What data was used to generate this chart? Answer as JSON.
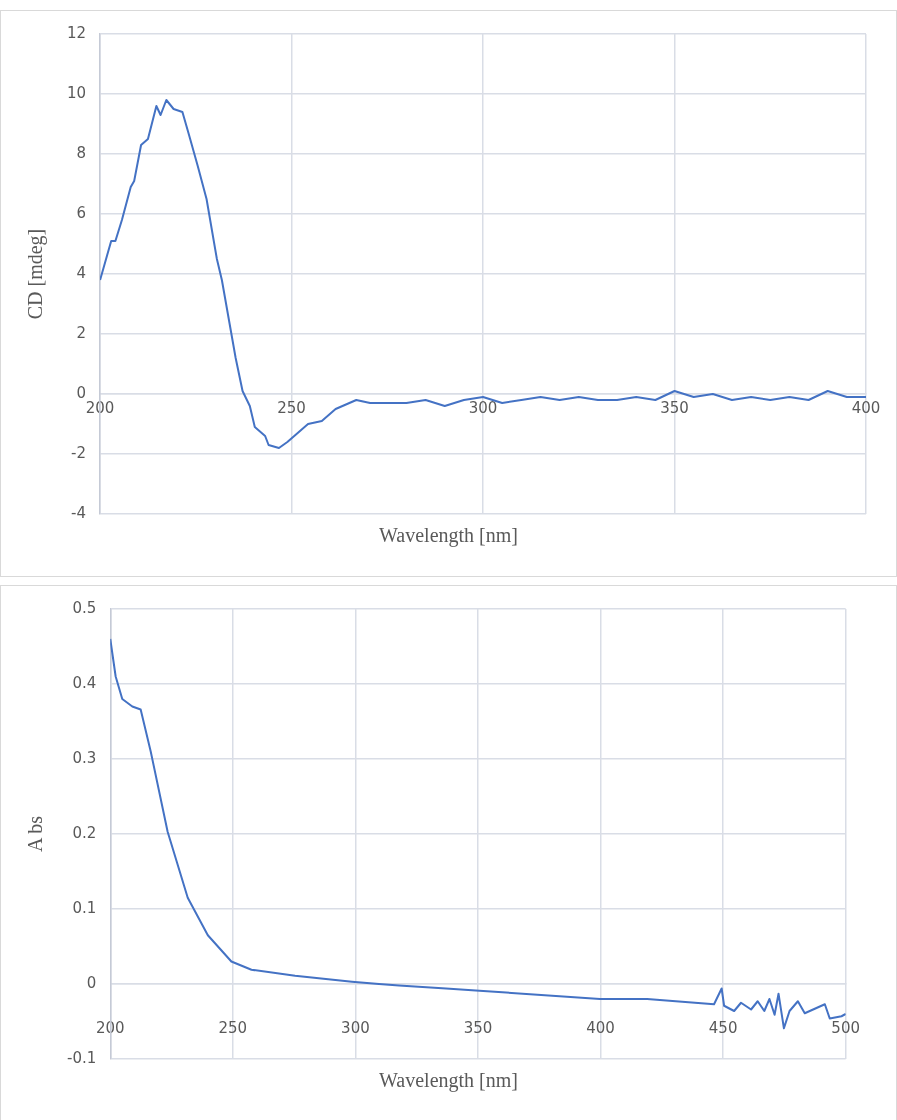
{
  "chart_data": [
    {
      "type": "line",
      "xlabel": "Wavelength  [nm]",
      "ylabel": "CD [mdeg]",
      "xlim": [
        200,
        400
      ],
      "xticks": [
        200,
        250,
        300,
        350,
        400
      ],
      "ylim": [
        -4,
        12
      ],
      "yticks": [
        -4,
        -2,
        0,
        2,
        4,
        6,
        8,
        10,
        12
      ],
      "grid": true,
      "x": [
        200,
        202.9,
        204,
        205.7,
        208,
        208.9,
        210.7,
        212.5,
        214.7,
        215.8,
        217.3,
        219.2,
        221.5,
        223.3,
        225.5,
        227.8,
        230.5,
        231.8,
        233.6,
        235.4,
        237.2,
        239.1,
        240.4,
        243.1,
        244,
        246.7,
        248.9,
        254.3,
        257.9,
        261.5,
        266.9,
        270.5,
        275.9,
        280,
        285,
        290,
        295,
        300,
        305,
        310,
        315,
        320,
        325,
        330,
        335,
        340,
        345,
        350,
        355,
        360,
        365,
        370,
        375,
        380,
        385,
        390,
        395,
        400
      ],
      "series": [
        {
          "color": "#4472c4",
          "values": [
            3.8,
            5.1,
            5.1,
            5.8,
            6.9,
            7.1,
            8.3,
            8.5,
            9.6,
            9.3,
            9.8,
            9.5,
            9.4,
            8.6,
            7.6,
            6.5,
            4.5,
            3.8,
            2.5,
            1.2,
            0.1,
            -0.4,
            -1.1,
            -1.4,
            -1.7,
            -1.8,
            -1.6,
            -1.0,
            -0.9,
            -0.5,
            -0.2,
            -0.3,
            -0.3,
            -0.3,
            -0.2,
            -0.4,
            -0.2,
            -0.1,
            -0.3,
            -0.2,
            -0.1,
            -0.2,
            -0.1,
            -0.2,
            -0.2,
            -0.1,
            -0.2,
            0.1,
            -0.1,
            0.0,
            -0.2,
            -0.1,
            -0.2,
            -0.1,
            -0.2,
            0.1,
            -0.1,
            -0.1
          ]
        }
      ]
    },
    {
      "type": "line",
      "xlabel": "Wavelength  [nm]",
      "ylabel": "A bs",
      "xlim": [
        200,
        500
      ],
      "xticks": [
        200,
        250,
        300,
        350,
        400,
        450,
        500
      ],
      "ylim": [
        -0.1,
        0.5
      ],
      "yticks": [
        -0.1,
        0,
        0.1,
        0.2,
        0.3,
        0.4,
        0.5
      ],
      "grid": true,
      "x": [
        200,
        202.2,
        204.9,
        209,
        212.4,
        216.5,
        223.4,
        231.6,
        239.8,
        249.4,
        257.6,
        275.4,
        298.6,
        309.6,
        317.8,
        337,
        350.6,
        399.8,
        419,
        446.3,
        449.4,
        450.4,
        454.5,
        457.3,
        461.4,
        464.1,
        466.8,
        468.9,
        471,
        472.6,
        474.8,
        477.1,
        480.5,
        483.3,
        491.5,
        493.5,
        498.3,
        500
      ],
      "series": [
        {
          "color": "#4472c4",
          "values": [
            0.46,
            0.41,
            0.38,
            0.37,
            0.366,
            0.31,
            0.203,
            0.115,
            0.065,
            0.03,
            0.019,
            0.011,
            0.003,
            0.0,
            -0.002,
            -0.006,
            -0.009,
            -0.02,
            -0.02,
            -0.027,
            -0.006,
            -0.029,
            -0.036,
            -0.025,
            -0.034,
            -0.023,
            -0.036,
            -0.02,
            -0.041,
            -0.013,
            -0.059,
            -0.036,
            -0.023,
            -0.039,
            -0.027,
            -0.046,
            -0.043,
            -0.04
          ]
        }
      ]
    }
  ]
}
